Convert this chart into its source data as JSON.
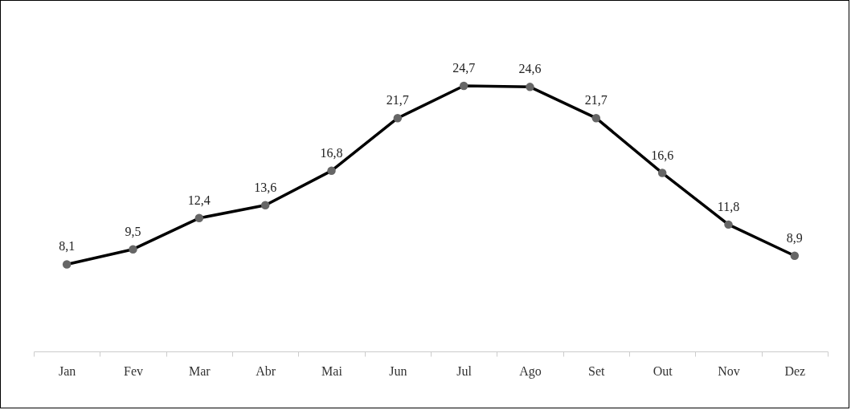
{
  "chart_data": {
    "type": "line",
    "categories": [
      "Jan",
      "Fev",
      "Mar",
      "Abr",
      "Mai",
      "Jun",
      "Jul",
      "Ago",
      "Set",
      "Out",
      "Nov",
      "Dez"
    ],
    "series": [
      {
        "color": "#000000",
        "values": [
          8.1,
          9.5,
          12.4,
          13.6,
          16.8,
          21.7,
          24.7,
          24.6,
          21.7,
          16.6,
          11.8,
          8.9
        ],
        "value_labels": [
          "8,1",
          "9,5",
          "12,4",
          "13,6",
          "16,8",
          "21,7",
          "24,7",
          "24,6",
          "21,7",
          "16,6",
          "11,8",
          "8,9"
        ]
      }
    ],
    "tick_labels": "x",
    "marker": "circle",
    "line_style": "solid",
    "grid": false
  }
}
